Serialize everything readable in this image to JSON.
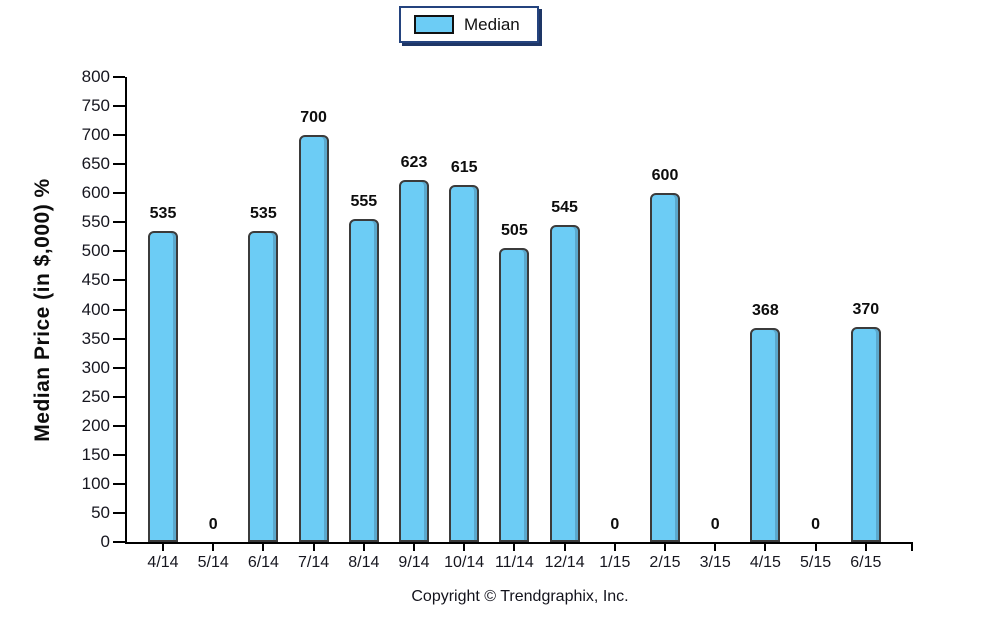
{
  "legend": {
    "label": "Median"
  },
  "chart_data": {
    "type": "bar",
    "title": "",
    "xlabel": "",
    "ylabel": "Median Price (in $,000) %",
    "categories": [
      "4/14",
      "5/14",
      "6/14",
      "7/14",
      "8/14",
      "9/14",
      "10/14",
      "11/14",
      "12/14",
      "1/15",
      "2/15",
      "3/15",
      "4/15",
      "5/15",
      "6/15"
    ],
    "series": [
      {
        "name": "Median",
        "values": [
          535,
          0,
          535,
          700,
          555,
          623,
          615,
          505,
          545,
          0,
          600,
          0,
          368,
          0,
          370
        ]
      }
    ],
    "ylim": [
      0,
      800
    ],
    "ytick_step": 50,
    "grid": false,
    "legend_position": "top-center",
    "colors": {
      "bar_fill": "#6CCCF5",
      "bar_border": "#3B3B3B",
      "legend_border": "#24437E",
      "legend_shadow": "#1E3666",
      "axis_color": "#000000",
      "label_color": "#16161f"
    }
  },
  "footer": {
    "copyright": "Copyright © Trendgraphix, Inc."
  }
}
